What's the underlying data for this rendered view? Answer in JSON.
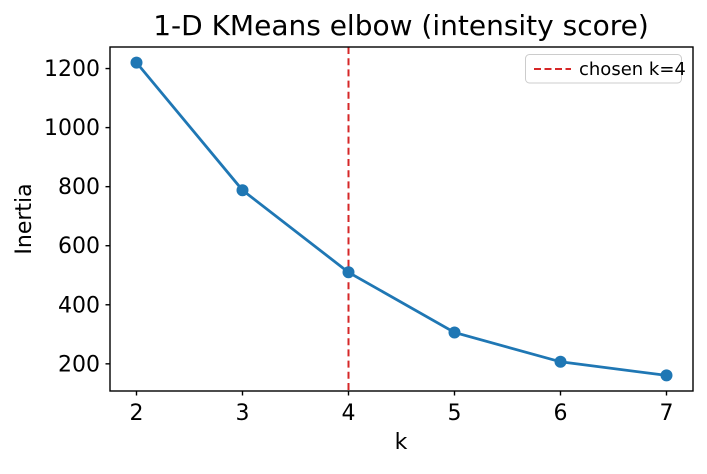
{
  "chart_data": {
    "type": "line",
    "title": "1-D KMeans elbow (intensity score)",
    "xlabel": "k",
    "ylabel": "Inertia",
    "x": [
      2,
      3,
      4,
      5,
      6,
      7
    ],
    "series": [
      {
        "name": "inertia",
        "color": "#1f77b4",
        "marker": "circle",
        "values": [
          1220,
          788,
          510,
          306,
          207,
          161
        ]
      }
    ],
    "xticks": [
      2,
      3,
      4,
      5,
      6,
      7
    ],
    "yticks": [
      200,
      400,
      600,
      800,
      1000,
      1200
    ],
    "xlim": [
      1.75,
      7.25
    ],
    "ylim": [
      108,
      1273
    ],
    "grid": false,
    "annotations": [
      {
        "type": "vline",
        "x": 4,
        "color": "#d62728",
        "linestyle": "dashed"
      }
    ],
    "legend": {
      "position": "upper right",
      "entries": [
        {
          "label": "chosen k=4",
          "color": "#d62728",
          "linestyle": "dashed"
        }
      ]
    }
  },
  "colors": {
    "background": "#ffffff",
    "line": "#1f77b4",
    "vline": "#d62728",
    "axes": "#000000",
    "legend_border": "#cccccc"
  }
}
